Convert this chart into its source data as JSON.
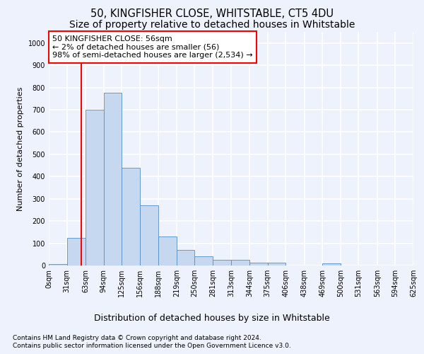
{
  "title1": "50, KINGFISHER CLOSE, WHITSTABLE, CT5 4DU",
  "title2": "Size of property relative to detached houses in Whitstable",
  "xlabel": "Distribution of detached houses by size in Whitstable",
  "ylabel": "Number of detached properties",
  "footer1": "Contains HM Land Registry data © Crown copyright and database right 2024.",
  "footer2": "Contains public sector information licensed under the Open Government Licence v3.0.",
  "annotation_line1": "50 KINGFISHER CLOSE: 56sqm",
  "annotation_line2": "← 2% of detached houses are smaller (56)",
  "annotation_line3": "98% of semi-detached houses are larger (2,534) →",
  "bar_color": "#c5d8f0",
  "bar_edge_color": "#5590c8",
  "vline_color": "red",
  "vline_x": 56,
  "bin_edges": [
    0,
    31,
    63,
    94,
    125,
    156,
    188,
    219,
    250,
    281,
    313,
    344,
    375,
    406,
    438,
    469,
    500,
    531,
    563,
    594,
    625
  ],
  "bar_heights": [
    5,
    125,
    700,
    775,
    440,
    270,
    130,
    70,
    40,
    25,
    25,
    12,
    12,
    0,
    0,
    10,
    0,
    0,
    0,
    0
  ],
  "ylim": [
    0,
    1050
  ],
  "yticks": [
    0,
    100,
    200,
    300,
    400,
    500,
    600,
    700,
    800,
    900,
    1000
  ],
  "xlim": [
    0,
    625
  ],
  "bg_color": "#eef2fc",
  "plot_bg_color": "#eef2fc",
  "grid_color": "#ffffff",
  "title1_fontsize": 10.5,
  "title2_fontsize": 10,
  "ylabel_fontsize": 8,
  "tick_fontsize": 7,
  "annotation_box_color": "red",
  "annotation_fontsize": 8,
  "footer_fontsize": 6.5,
  "xlabel_fontsize": 9
}
